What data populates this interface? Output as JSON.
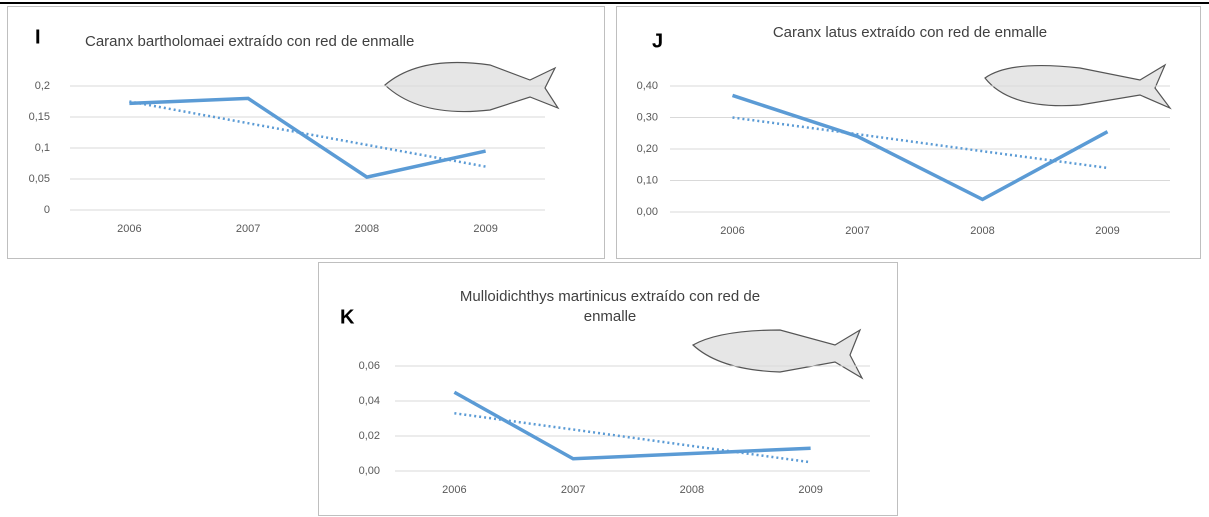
{
  "chart_data": [
    {
      "type": "line",
      "panel": "I",
      "title": [
        "Caranx bartholomaei extraído con red de enmalle"
      ],
      "categories": [
        "2006",
        "2007",
        "2008",
        "2009"
      ],
      "series": [
        {
          "color": "#5b9bd5",
          "style": "solid",
          "values": [
            0.172,
            0.18,
            0.053,
            0.095
          ]
        },
        {
          "color": "#5b9bd5",
          "style": "dotted",
          "values": [
            0.175,
            0.14,
            0.105,
            0.07
          ]
        }
      ],
      "ylim": [
        0,
        0.2
      ],
      "yticks": [
        0,
        {
          "value": 0.05,
          "label": "0,05"
        },
        {
          "value": 0.1,
          "label": "0,1"
        },
        {
          "value": 0.15,
          "label": "0,15"
        },
        {
          "value": 0.2,
          "label": "0,2"
        }
      ],
      "grid": true
    },
    {
      "type": "line",
      "panel": "J",
      "title": [
        "Caranx latus extraído con red de enmalle"
      ],
      "categories": [
        "2006",
        "2007",
        "2008",
        "2009"
      ],
      "series": [
        {
          "color": "#5b9bd5",
          "style": "solid",
          "values": [
            0.37,
            0.24,
            0.04,
            0.255
          ]
        },
        {
          "color": "#5b9bd5",
          "style": "dotted",
          "values": [
            0.3,
            0.247,
            0.193,
            0.14
          ]
        }
      ],
      "ylim": [
        0,
        0.4
      ],
      "yticks": [
        {
          "value": 0,
          "label": "0,00"
        },
        {
          "value": 0.1,
          "label": "0,10"
        },
        {
          "value": 0.2,
          "label": "0,20"
        },
        {
          "value": 0.3,
          "label": "0,30"
        },
        {
          "value": 0.4,
          "label": "0,40"
        }
      ],
      "grid": true
    },
    {
      "type": "line",
      "panel": "K",
      "title": [
        "Mulloidichthys martinicus extraído con red de",
        "enmalle"
      ],
      "categories": [
        "2006",
        "2007",
        "2008",
        "2009"
      ],
      "series": [
        {
          "color": "#5b9bd5",
          "style": "solid",
          "values": [
            0.045,
            0.007,
            0.01,
            0.013
          ]
        },
        {
          "color": "#5b9bd5",
          "style": "dotted",
          "values": [
            0.033,
            0.0237,
            0.0143,
            0.005
          ]
        }
      ],
      "ylim": [
        0,
        0.06
      ],
      "yticks": [
        {
          "value": 0,
          "label": "0,00"
        },
        {
          "value": 0.02,
          "label": "0,02"
        },
        {
          "value": 0.04,
          "label": "0,04"
        },
        {
          "value": 0.06,
          "label": "0,06"
        }
      ],
      "grid": true
    }
  ]
}
